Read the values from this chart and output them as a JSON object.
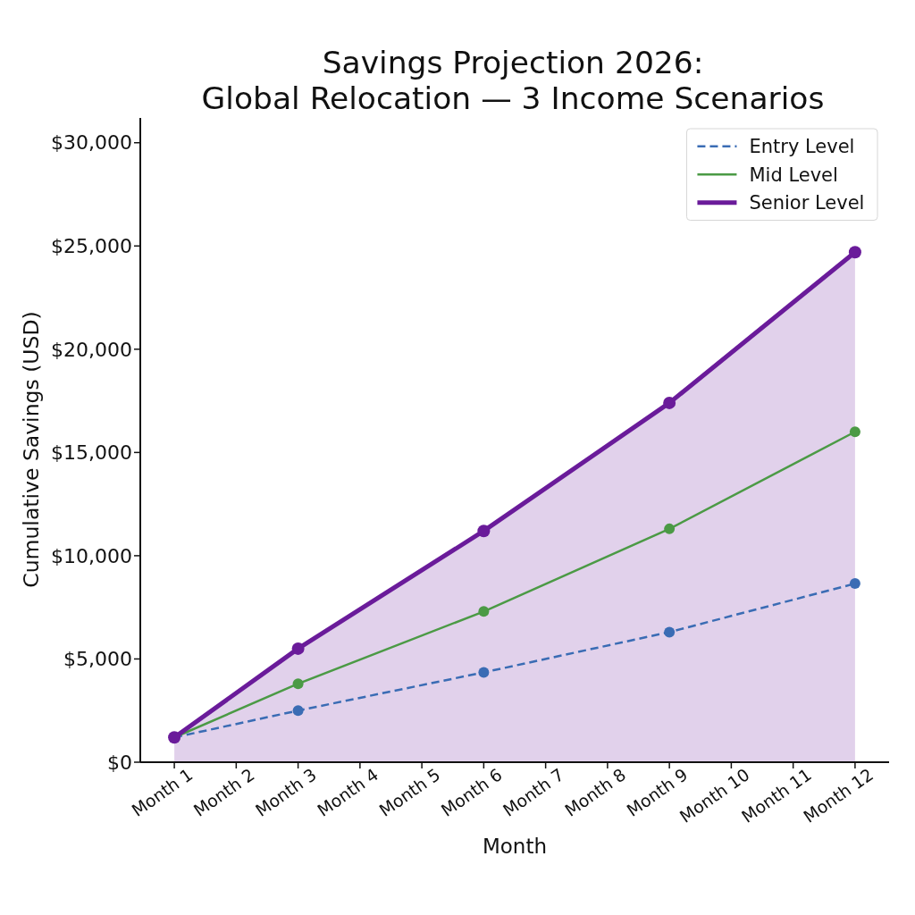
{
  "chart_data": {
    "type": "line",
    "title": "Savings Projection 2026:\nGlobal Relocation — 3 Income Scenarios",
    "xlabel": "Month",
    "ylabel": "Cumulative Savings (USD)",
    "categories": [
      "Month 1",
      "Month 2",
      "Month 3",
      "Month 4",
      "Month 5",
      "Month 6",
      "Month 7",
      "Month 8",
      "Month 9",
      "Month 10",
      "Month 11",
      "Month 12"
    ],
    "ylim": [
      0,
      31200
    ],
    "yticks": [
      {
        "value": 0,
        "label": "$0"
      },
      {
        "value": 5000,
        "label": "$5,000"
      },
      {
        "value": 10000,
        "label": "$10,000"
      },
      {
        "value": 15000,
        "label": "$15,000"
      },
      {
        "value": 20000,
        "label": "$20,000"
      },
      {
        "value": 25000,
        "label": "$25,000"
      },
      {
        "value": 30000,
        "label": "$30,000"
      }
    ],
    "series": [
      {
        "name": "Entry Level",
        "color": "#3a6cb4",
        "line_style": "dashed",
        "values": [
          1200,
          null,
          2500,
          null,
          null,
          4350,
          null,
          null,
          6300,
          null,
          null,
          8650
        ]
      },
      {
        "name": "Mid Level",
        "color": "#4b9a45",
        "line_style": "solid",
        "values": [
          1200,
          null,
          3800,
          null,
          null,
          7300,
          null,
          null,
          11300,
          null,
          null,
          16000
        ]
      },
      {
        "name": "Senior Level",
        "type": "area",
        "color": "#6a1b9a",
        "line_style": "solid",
        "values": [
          1200,
          null,
          5500,
          null,
          null,
          11200,
          null,
          null,
          17400,
          null,
          null,
          24700
        ]
      }
    ],
    "marker": "circle",
    "legend": "top right"
  }
}
